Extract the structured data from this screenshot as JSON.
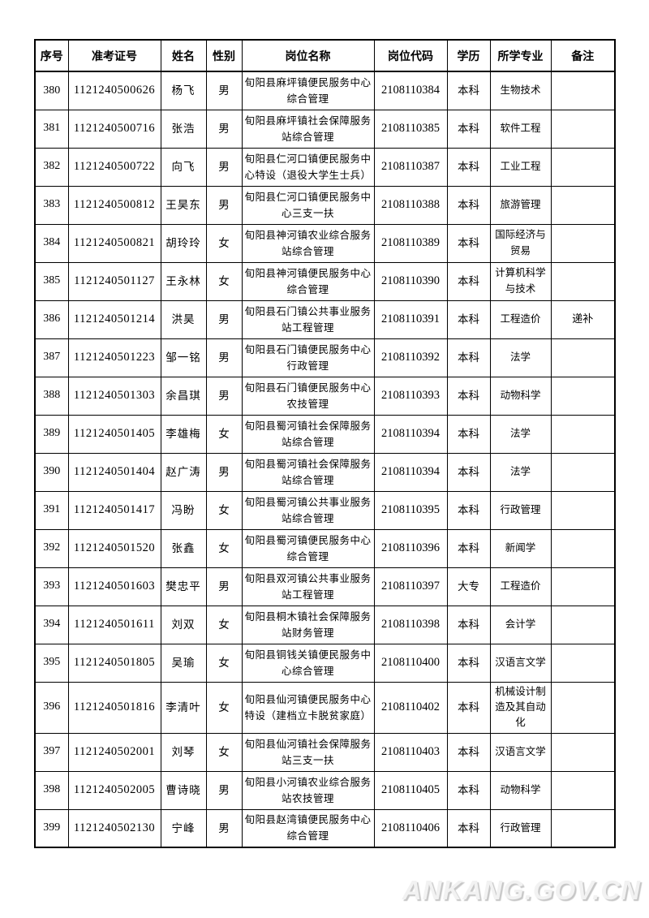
{
  "page": {
    "watermark": {
      "text": "ANKANG.GOV.CN",
      "color": "#f2f2f2",
      "shadow_color": "#c6c6c6"
    }
  },
  "table": {
    "headers": [
      "序号",
      "准考证号",
      "姓名",
      "性别",
      "岗位名称",
      "岗位代码",
      "学历",
      "所学专业",
      "备注"
    ],
    "rows": [
      [
        "380",
        "1121240500626",
        "杨飞",
        "男",
        "旬阳县麻坪镇便民服务中心综合管理",
        "2108110384",
        "本科",
        "生物技术",
        ""
      ],
      [
        "381",
        "1121240500716",
        "张浩",
        "男",
        "旬阳县麻坪镇社会保障服务站综合管理",
        "2108110385",
        "本科",
        "软件工程",
        ""
      ],
      [
        "382",
        "1121240500722",
        "向飞",
        "男",
        "旬阳县仁河口镇便民服务中心特设（退役大学生士兵）",
        "2108110387",
        "本科",
        "工业工程",
        ""
      ],
      [
        "383",
        "1121240500812",
        "王昊东",
        "男",
        "旬阳县仁河口镇便民服务中心三支一扶",
        "2108110388",
        "本科",
        "旅游管理",
        ""
      ],
      [
        "384",
        "1121240500821",
        "胡玲玲",
        "女",
        "旬阳县神河镇农业综合服务站综合管理",
        "2108110389",
        "本科",
        "国际经济与贸易",
        ""
      ],
      [
        "385",
        "1121240501127",
        "王永林",
        "女",
        "旬阳县神河镇便民服务中心综合管理",
        "2108110390",
        "本科",
        "计算机科学与技术",
        ""
      ],
      [
        "386",
        "1121240501214",
        "洪昊",
        "男",
        "旬阳县石门镇公共事业服务站工程管理",
        "2108110391",
        "本科",
        "工程造价",
        "递补"
      ],
      [
        "387",
        "1121240501223",
        "邹一铭",
        "男",
        "旬阳县石门镇便民服务中心行政管理",
        "2108110392",
        "本科",
        "法学",
        ""
      ],
      [
        "388",
        "1121240501303",
        "余昌琪",
        "男",
        "旬阳县石门镇便民服务中心农技管理",
        "2108110393",
        "本科",
        "动物科学",
        ""
      ],
      [
        "389",
        "1121240501405",
        "李雄梅",
        "女",
        "旬阳县蜀河镇社会保障服务站综合管理",
        "2108110394",
        "本科",
        "法学",
        ""
      ],
      [
        "390",
        "1121240501404",
        "赵广涛",
        "男",
        "旬阳县蜀河镇社会保障服务站综合管理",
        "2108110394",
        "本科",
        "法学",
        ""
      ],
      [
        "391",
        "1121240501417",
        "冯盼",
        "女",
        "旬阳县蜀河镇公共事业服务站综合管理",
        "2108110395",
        "本科",
        "行政管理",
        ""
      ],
      [
        "392",
        "1121240501520",
        "张鑫",
        "女",
        "旬阳县蜀河镇便民服务中心综合管理",
        "2108110396",
        "本科",
        "新闻学",
        ""
      ],
      [
        "393",
        "1121240501603",
        "樊忠平",
        "男",
        "旬阳县双河镇公共事业服务站工程管理",
        "2108110397",
        "大专",
        "工程造价",
        ""
      ],
      [
        "394",
        "1121240501611",
        "刘双",
        "女",
        "旬阳县桐木镇社会保障服务站财务管理",
        "2108110398",
        "本科",
        "会计学",
        ""
      ],
      [
        "395",
        "1121240501805",
        "吴瑜",
        "女",
        "旬阳县铜钱关镇便民服务中心综合管理",
        "2108110400",
        "本科",
        "汉语言文学",
        ""
      ],
      [
        "396",
        "1121240501816",
        "李清叶",
        "女",
        "旬阳县仙河镇便民服务中心特设（建档立卡脱贫家庭）",
        "2108110402",
        "本科",
        "机械设计制造及其自动化",
        ""
      ],
      [
        "397",
        "1121240502001",
        "刘琴",
        "女",
        "旬阳县仙河镇社会保障服务站三支一扶",
        "2108110403",
        "本科",
        "汉语言文学",
        ""
      ],
      [
        "398",
        "1121240502005",
        "曹诗晓",
        "男",
        "旬阳县小河镇农业综合服务站农技管理",
        "2108110405",
        "本科",
        "动物科学",
        ""
      ],
      [
        "399",
        "1121240502130",
        "宁峰",
        "男",
        "旬阳县赵湾镇便民服务中心综合管理",
        "2108110406",
        "本科",
        "行政管理",
        ""
      ]
    ]
  }
}
